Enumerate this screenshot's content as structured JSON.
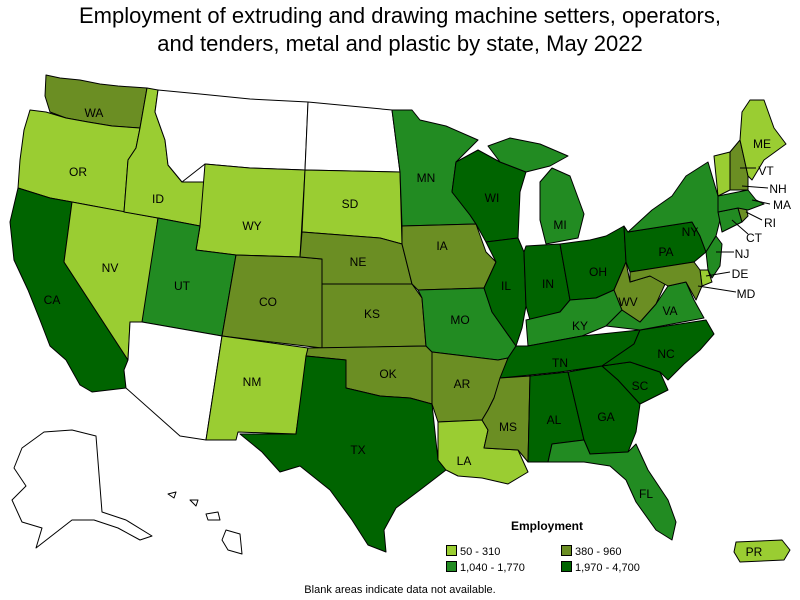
{
  "title": {
    "line1": "Employment of extruding and drawing machine setters, operators,",
    "line2": "and tenders, metal and plastic by state, May 2022"
  },
  "colors": {
    "no_data": "#ffffff",
    "c1": "#9acd32",
    "c2": "#6b8e23",
    "c3": "#228b22",
    "c4": "#006400"
  },
  "legend": {
    "title": "Employment",
    "items": [
      {
        "label": "50 - 310",
        "color": "#9acd32"
      },
      {
        "label": "380 - 960",
        "color": "#6b8e23"
      },
      {
        "label": "1,040 - 1,770",
        "color": "#228b22"
      },
      {
        "label": "1,970 - 4,700",
        "color": "#006400"
      }
    ]
  },
  "footnote": "Blank areas indicate data not available.",
  "state_classes": {
    "WA": "c2",
    "OR": "c1",
    "CA": "c4",
    "NV": "c1",
    "ID": "c1",
    "MT": "none",
    "WY": "c1",
    "UT": "c3",
    "AZ": "none",
    "CO": "c2",
    "NM": "c1",
    "ND": "none",
    "SD": "c1",
    "NE": "c2",
    "KS": "c2",
    "OK": "c2",
    "TX": "c4",
    "MN": "c3",
    "IA": "c2",
    "MO": "c3",
    "AR": "c2",
    "LA": "c1",
    "WI": "c4",
    "IL": "c4",
    "MI": "c3",
    "IN": "c4",
    "OH": "c4",
    "KY": "c3",
    "TN": "c4",
    "MS": "c2",
    "AL": "c4",
    "GA": "c4",
    "FL": "c3",
    "SC": "c4",
    "NC": "c4",
    "VA": "c3",
    "WV": "c2",
    "PA": "c4",
    "NY": "c3",
    "VT": "c1",
    "NH": "c2",
    "ME": "c1",
    "MA": "c3",
    "RI": "c2",
    "CT": "c3",
    "NJ": "c3",
    "DE": "c1",
    "MD": "c2",
    "AK": "none",
    "HI": "none",
    "PR": "c1"
  },
  "state_labels": {
    "WA": "WA",
    "OR": "OR",
    "CA": "CA",
    "NV": "NV",
    "ID": "ID",
    "WY": "WY",
    "UT": "UT",
    "CO": "CO",
    "NM": "NM",
    "SD": "SD",
    "NE": "NE",
    "KS": "KS",
    "OK": "OK",
    "TX": "TX",
    "MN": "MN",
    "IA": "IA",
    "MO": "MO",
    "AR": "AR",
    "LA": "LA",
    "WI": "WI",
    "IL": "IL",
    "MI": "MI",
    "IN": "IN",
    "OH": "OH",
    "KY": "KY",
    "TN": "TN",
    "MS": "MS",
    "AL": "AL",
    "GA": "GA",
    "FL": "FL",
    "SC": "SC",
    "NC": "NC",
    "VA": "VA",
    "WV": "WV",
    "PA": "PA",
    "NY": "NY",
    "VT": "VT",
    "NH": "NH",
    "ME": "ME",
    "MA": "MA",
    "RI": "RI",
    "CT": "CT",
    "NJ": "NJ",
    "DE": "DE",
    "MD": "MD",
    "PR": "PR"
  }
}
